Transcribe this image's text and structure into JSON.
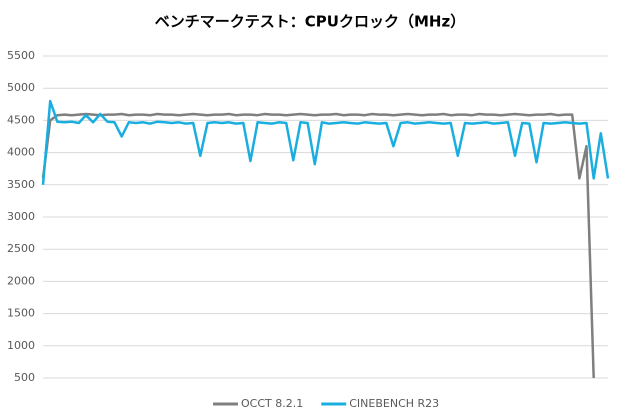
{
  "chart_data": {
    "type": "line",
    "title": "ベンチマークテスト：CPUクロック（MHz）",
    "categories": [
      null,
      null,
      null,
      null,
      null,
      null,
      null,
      null,
      null,
      null,
      null,
      null,
      null,
      null,
      null,
      null,
      null,
      null,
      null,
      null,
      null,
      null,
      null,
      null,
      null,
      null,
      null,
      null,
      null,
      null,
      null,
      null,
      null,
      null,
      null,
      null,
      null,
      null,
      null,
      null,
      null,
      null,
      null,
      null,
      null,
      null,
      null,
      null,
      null,
      null,
      null,
      null,
      null,
      null,
      null,
      null,
      null,
      null,
      null,
      null,
      null,
      null,
      null,
      null,
      null,
      null,
      null,
      null,
      null,
      null,
      null,
      null,
      null,
      null,
      null,
      null,
      null,
      null,
      null,
      null
    ],
    "series": [
      {
        "name": "OCCT 8.2.1",
        "color": "#7f7f7f",
        "values": [
          3600,
          4500,
          4580,
          4590,
          4580,
          4590,
          4600,
          4590,
          4580,
          4590,
          4590,
          4600,
          4580,
          4590,
          4590,
          4580,
          4600,
          4590,
          4590,
          4580,
          4590,
          4600,
          4590,
          4580,
          4590,
          4590,
          4600,
          4580,
          4590,
          4590,
          4580,
          4600,
          4590,
          4590,
          4580,
          4590,
          4600,
          4590,
          4580,
          4590,
          4590,
          4600,
          4580,
          4590,
          4590,
          4580,
          4600,
          4590,
          4590,
          4580,
          4590,
          4600,
          4590,
          4580,
          4590,
          4590,
          4600,
          4580,
          4590,
          4590,
          4580,
          4600,
          4590,
          4590,
          4580,
          4590,
          4600,
          4590,
          4580,
          4590,
          4590,
          4600,
          4580,
          4590,
          4590,
          3600,
          4100,
          500,
          null,
          null
        ]
      },
      {
        "name": "CINEBENCH R23",
        "color": "#1aaee0",
        "values": [
          3500,
          4800,
          4480,
          4470,
          4480,
          4460,
          4580,
          4470,
          4600,
          4480,
          4470,
          4250,
          4470,
          4460,
          4470,
          4450,
          4480,
          4470,
          4460,
          4470,
          4450,
          4460,
          3950,
          4460,
          4470,
          4460,
          4470,
          4450,
          4460,
          3870,
          4470,
          4460,
          4450,
          4470,
          4460,
          3880,
          4470,
          4460,
          3820,
          4470,
          4450,
          4460,
          4470,
          4460,
          4450,
          4470,
          4460,
          4450,
          4460,
          4100,
          4460,
          4470,
          4450,
          4460,
          4470,
          4460,
          4450,
          4460,
          3950,
          4460,
          4450,
          4460,
          4470,
          4450,
          4460,
          4470,
          3950,
          4460,
          4450,
          3850,
          4460,
          4450,
          4460,
          4470,
          4460,
          4450,
          4460,
          3600,
          4300,
          3600
        ]
      }
    ],
    "ylim": [
      500,
      5500
    ],
    "yticks": [
      500,
      1000,
      1500,
      2000,
      2500,
      3000,
      3500,
      4000,
      4500,
      5000,
      5500
    ],
    "grid": true,
    "legend": "bottom"
  }
}
